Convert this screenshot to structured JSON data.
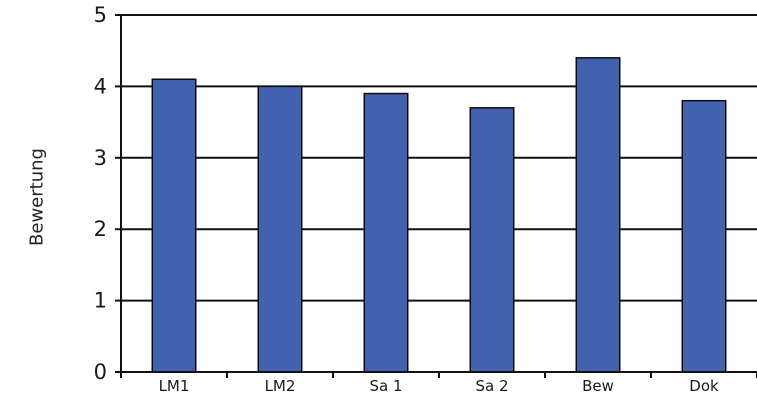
{
  "chart_data": {
    "type": "bar",
    "title": "",
    "xlabel": "",
    "ylabel": "Bewertung",
    "categories": [
      "LM1",
      "LM2",
      "Sa 1",
      "Sa 2",
      "Bew",
      "Dok"
    ],
    "values": [
      4.1,
      4.0,
      3.9,
      3.7,
      4.4,
      3.8
    ],
    "ylim": [
      0,
      5
    ],
    "yticks": [
      "0",
      "1",
      "2",
      "3",
      "4",
      "5"
    ],
    "grid": "horizontal",
    "legend": "none",
    "colors": {
      "bar_fill": "#4362AE",
      "bar_stroke": "#0d0d0d",
      "grid": "#111111"
    }
  }
}
